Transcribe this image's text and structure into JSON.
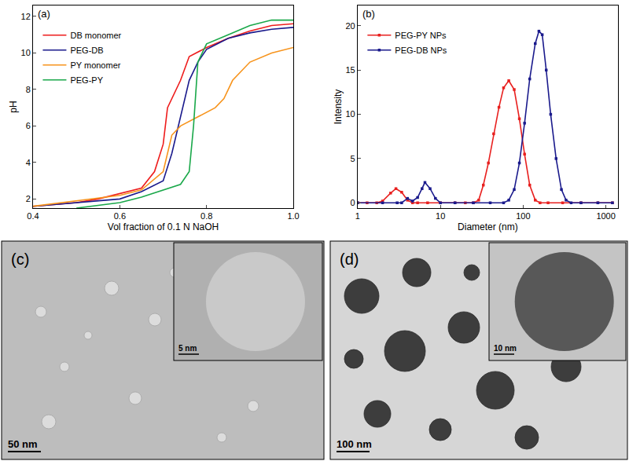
{
  "chart_data": [
    {
      "type": "line",
      "annotations": [
        "(a)"
      ],
      "x_label": "Vol fraction of 0.1 N NaOH",
      "y_label": "pH",
      "xlim": [
        0.4,
        1.0
      ],
      "xticks": [
        0.4,
        0.6,
        0.8,
        {
          "value": 1.0,
          "label": "1.0"
        }
      ],
      "ylim": [
        1.5,
        12.6
      ],
      "yticks": [
        2,
        4,
        6,
        8,
        10,
        12
      ],
      "grid": false,
      "legend": "upper left",
      "series": [
        {
          "name": "DB monomer",
          "color": "#ee1c1c",
          "line_style": "solid",
          "x": [
            0.4,
            0.5,
            0.55,
            0.6,
            0.65,
            0.68,
            0.7,
            0.71,
            0.72,
            0.74,
            0.76,
            0.8,
            0.85,
            0.9,
            0.95,
            1.0
          ],
          "values": [
            1.6,
            1.8,
            2.0,
            2.3,
            2.6,
            3.5,
            5.0,
            7.0,
            7.5,
            8.5,
            9.8,
            10.3,
            10.8,
            11.2,
            11.5,
            11.6
          ]
        },
        {
          "name": "PEG-DB",
          "color": "#1a1a8c",
          "line_style": "solid",
          "x": [
            0.4,
            0.5,
            0.6,
            0.65,
            0.7,
            0.72,
            0.74,
            0.76,
            0.78,
            0.8,
            0.85,
            0.9,
            0.95,
            1.0
          ],
          "values": [
            1.6,
            1.8,
            2.0,
            2.4,
            3.0,
            4.5,
            6.5,
            8.5,
            9.5,
            10.2,
            10.8,
            11.1,
            11.3,
            11.4
          ]
        },
        {
          "name": "PY monomer",
          "color": "#f7941d",
          "line_style": "solid",
          "x": [
            0.4,
            0.5,
            0.6,
            0.65,
            0.7,
            0.72,
            0.74,
            0.78,
            0.82,
            0.84,
            0.86,
            0.9,
            0.95,
            1.0
          ],
          "values": [
            1.6,
            1.9,
            2.2,
            2.5,
            3.5,
            5.5,
            6.0,
            6.5,
            7.0,
            7.5,
            8.5,
            9.5,
            10.0,
            10.3
          ]
        },
        {
          "name": "PEG-PY",
          "color": "#1aa84a",
          "line_style": "solid",
          "x": [
            0.5,
            0.6,
            0.65,
            0.7,
            0.74,
            0.76,
            0.77,
            0.78,
            0.8,
            0.85,
            0.9,
            0.95,
            1.0
          ],
          "values": [
            1.5,
            1.8,
            2.1,
            2.5,
            2.8,
            3.5,
            6.0,
            9.5,
            10.5,
            11.0,
            11.5,
            11.8,
            11.8
          ]
        }
      ]
    },
    {
      "type": "line",
      "annotations": [
        "(b)"
      ],
      "x_label": "Diameter (nm)",
      "y_label": "Intensity",
      "log": "x",
      "xlim": [
        1,
        1400
      ],
      "xticks": [
        1,
        10,
        100,
        1000
      ],
      "ylim": [
        -0.6,
        22.3
      ],
      "yticks": [
        0,
        5,
        10,
        15,
        20
      ],
      "grid": false,
      "legend": "upper left",
      "series": [
        {
          "name": "PEG-PY NPs",
          "color": "#e8201f",
          "marker": "square",
          "line_style": "solid",
          "x": [
            1,
            1.3,
            1.7,
            2.0,
            2.5,
            2.9,
            3.4,
            4.0,
            4.6,
            5.3,
            7,
            10,
            15,
            20,
            25,
            29,
            33,
            38,
            44,
            51,
            58,
            67,
            78,
            90,
            104,
            120,
            140,
            160,
            200,
            300,
            500,
            800,
            1200
          ],
          "values": [
            0,
            0,
            0,
            0.2,
            1.1,
            1.6,
            1.2,
            0.3,
            0,
            0,
            0,
            0,
            0,
            0,
            0,
            0.3,
            2.0,
            4.5,
            7.8,
            10.8,
            13.0,
            13.8,
            12.8,
            9.5,
            5.5,
            2.0,
            0.3,
            0,
            0,
            0,
            0,
            0,
            0
          ]
        },
        {
          "name": "PEG-DB NPs",
          "color": "#1a1a8c",
          "marker": "square",
          "line_style": "solid",
          "x": [
            1,
            2,
            3.0,
            3.4,
            4.0,
            4.6,
            5.3,
            6.0,
            6.5,
            7.5,
            8.7,
            10,
            15,
            25,
            40,
            58,
            67,
            78,
            90,
            104,
            120,
            140,
            155,
            170,
            190,
            215,
            250,
            290,
            330,
            380,
            500,
            800,
            1200
          ],
          "values": [
            0,
            0,
            0,
            0,
            0.5,
            0.2,
            0.6,
            1.6,
            2.3,
            1.6,
            0.5,
            0,
            0,
            0,
            0,
            0,
            0.3,
            1.5,
            4.5,
            9.0,
            14.0,
            18.0,
            19.4,
            19.0,
            15.0,
            10.0,
            5.0,
            1.5,
            0.3,
            0,
            0,
            0,
            0
          ]
        }
      ]
    }
  ],
  "images": [
    {
      "label": "(c)",
      "scale_bar": "50 nm",
      "inset_scale_bar": "5 nm"
    },
    {
      "label": "(d)",
      "scale_bar": "100 nm",
      "inset_scale_bar": "10 nm"
    }
  ]
}
